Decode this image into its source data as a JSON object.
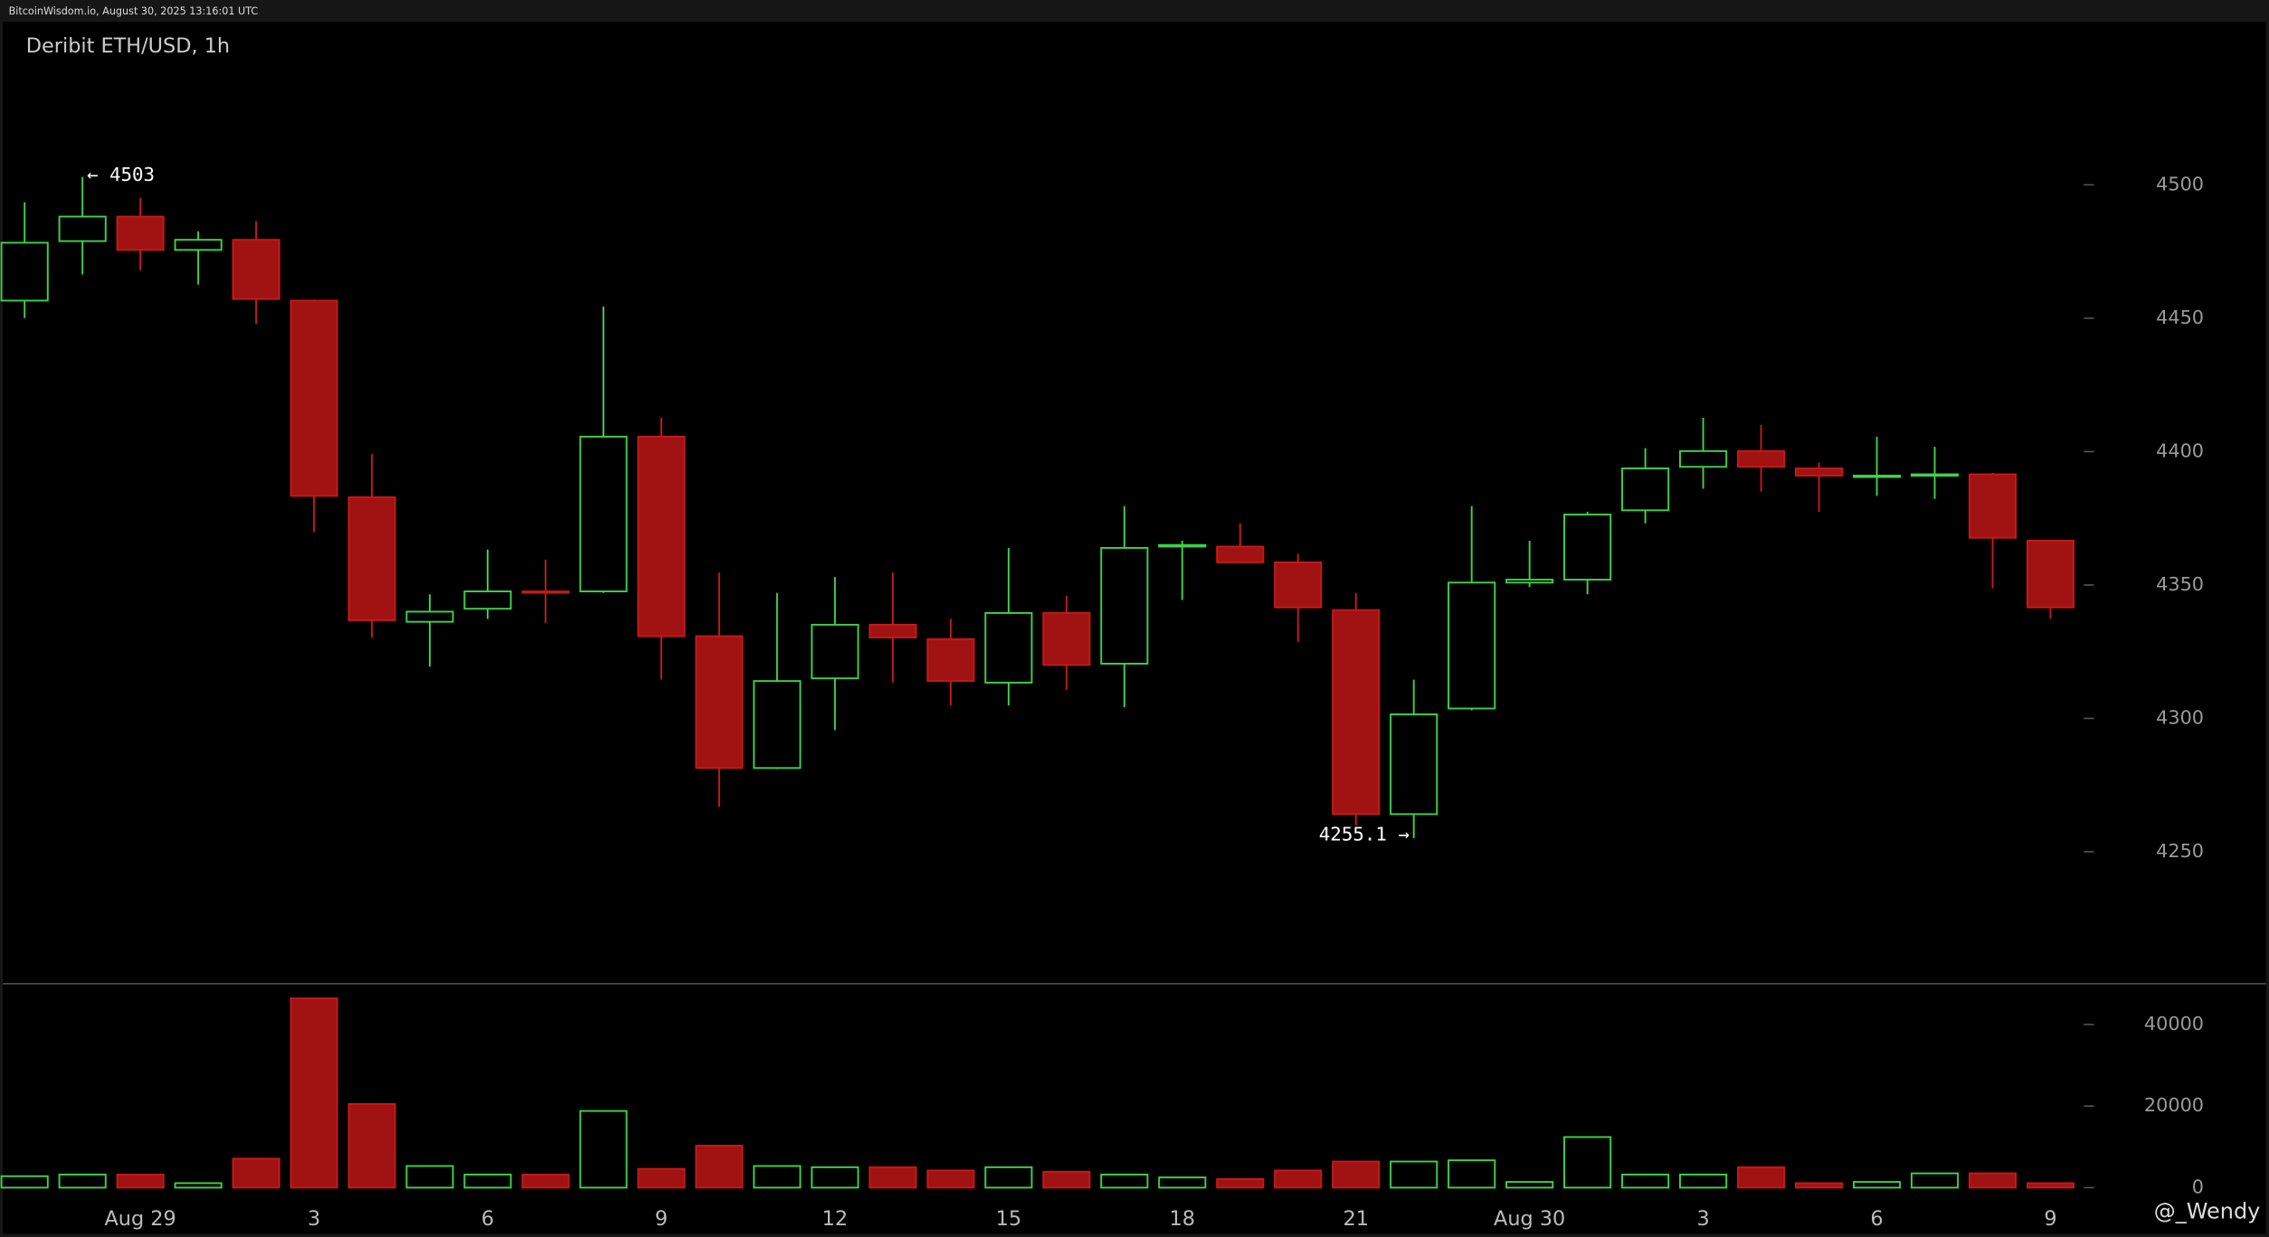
{
  "header": "BitcoinWisdom.io, August 30, 2025 13:16:01 UTC",
  "watermark": "@_Wendy",
  "chart_data": [
    {
      "type": "candlestick",
      "title": "Deribit ETH/USD, 1h",
      "categories": [
        null,
        null,
        "Aug 29",
        null,
        null,
        "3",
        null,
        null,
        "6",
        null,
        null,
        "9",
        null,
        null,
        "12",
        null,
        null,
        "15",
        null,
        null,
        "18",
        null,
        null,
        "21",
        null,
        null,
        "Aug 30",
        null,
        null,
        "3",
        null,
        null,
        "6",
        null,
        null,
        "9"
      ],
      "open": [
        4456.6,
        4478.9,
        4488.1,
        4475.6,
        4479.4,
        4456.6,
        4382.9,
        4336.2,
        4341.1,
        4347.6,
        4347.6,
        4405.6,
        4330.8,
        4281.4,
        4315.0,
        4335.1,
        4329.7,
        4313.4,
        4339.5,
        4320.5,
        4364.4,
        4364.4,
        4358.5,
        4340.6,
        4264.1,
        4303.7,
        4350.9,
        4352.0,
        4378.0,
        4394.3,
        4400.2,
        4393.7,
        4390.5,
        4391.0,
        4391.5,
        4366.6
      ],
      "high": [
        4493.5,
        4503,
        4495.1,
        4482.6,
        4486.4,
        4457.0,
        4399.1,
        4346.5,
        4363.3,
        4359.5,
        4454.4,
        4412.7,
        4354.7,
        4347.0,
        4353.0,
        4354.7,
        4337.3,
        4363.9,
        4346.0,
        4379.6,
        4366.6,
        4373.1,
        4361.7,
        4347.0,
        4314.5,
        4379.6,
        4366.6,
        4377.5,
        4401.3,
        4412.7,
        4410.0,
        4395.9,
        4405.6,
        4401.8,
        4392.0,
        4366.6
      ],
      "low": [
        4450.1,
        4466.4,
        4468.0,
        4462.6,
        4447.9,
        4369.8,
        4330.3,
        4319.4,
        4337.3,
        4335.7,
        4347.0,
        4314.5,
        4266.8,
        4281.0,
        4295.6,
        4313.4,
        4304.8,
        4304.8,
        4310.7,
        4304.2,
        4344.4,
        4358.0,
        4328.6,
        4259.8,
        4255.1,
        4303.0,
        4349.2,
        4346.5,
        4373.1,
        4386.1,
        4385.0,
        4377.4,
        4383.4,
        4382.3,
        4348.7,
        4337.3
      ],
      "close": [
        4478.3,
        4488.1,
        4475.6,
        4479.4,
        4457.2,
        4383.4,
        4336.8,
        4340.0,
        4347.6,
        4347.2,
        4405.6,
        4330.8,
        4281.4,
        4314.0,
        4335.1,
        4330.3,
        4314.0,
        4339.5,
        4320.0,
        4363.9,
        4365.0,
        4358.5,
        4341.6,
        4264.1,
        4301.5,
        4350.9,
        4352.0,
        4376.4,
        4393.7,
        4400.2,
        4394.3,
        4391.0,
        4391.0,
        4391.5,
        4367.7,
        4341.6
      ],
      "up_color": "#3fd14a",
      "down_color": "#a11212",
      "ylim": [
        4200,
        4560
      ],
      "yticks": [
        4250,
        4300,
        4350,
        4400,
        4450,
        4500
      ],
      "annotations": [
        "← 4503",
        "4255.1 →"
      ]
    },
    {
      "type": "bar",
      "values": [
        2800,
        3200,
        3200,
        1100,
        7100,
        46400,
        20500,
        5300,
        3200,
        3200,
        18800,
        4600,
        10300,
        5300,
        5000,
        5000,
        4200,
        5000,
        3900,
        3200,
        2500,
        2100,
        4200,
        6400,
        6400,
        6700,
        1400,
        12400,
        3200,
        3200,
        5000,
        1100,
        1400,
        3500,
        3500,
        1100
      ],
      "ylim": [
        0,
        50000
      ],
      "yticks": [
        0,
        20000,
        40000
      ]
    }
  ]
}
